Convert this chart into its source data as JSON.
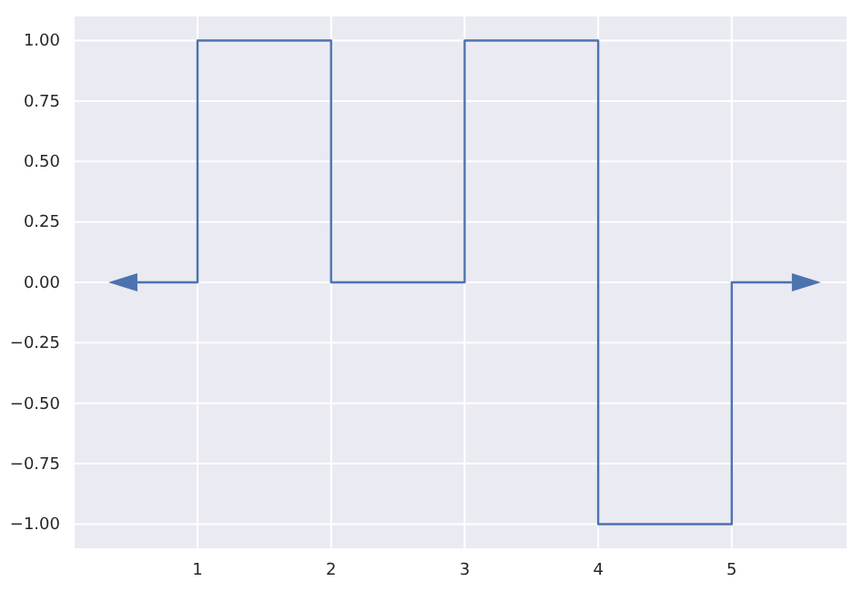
{
  "chart_data": {
    "type": "step",
    "x": [
      0.55,
      1,
      2,
      3,
      4,
      5,
      5.45
    ],
    "series": [
      {
        "color": "#4c72b0",
        "values": [
          0,
          1,
          0,
          1,
          -1,
          0,
          0
        ]
      }
    ],
    "xlim": [
      0.08,
      5.86
    ],
    "xticks": [
      1,
      2,
      3,
      4,
      5
    ],
    "ylim": [
      -1.1,
      1.1
    ],
    "yticks": [
      {
        "value": -1,
        "label": "−1.00"
      },
      {
        "value": -0.75,
        "label": "−0.75"
      },
      {
        "value": -0.5,
        "label": "−0.50"
      },
      {
        "value": -0.25,
        "label": "−0.25"
      },
      {
        "value": 0,
        "label": "0.00"
      },
      {
        "value": 0.25,
        "label": "0.25"
      },
      {
        "value": 0.5,
        "label": "0.50"
      },
      {
        "value": 0.75,
        "label": "0.75"
      },
      {
        "value": 1,
        "label": "1.00"
      }
    ],
    "grid": true,
    "line_style": "solid"
  }
}
